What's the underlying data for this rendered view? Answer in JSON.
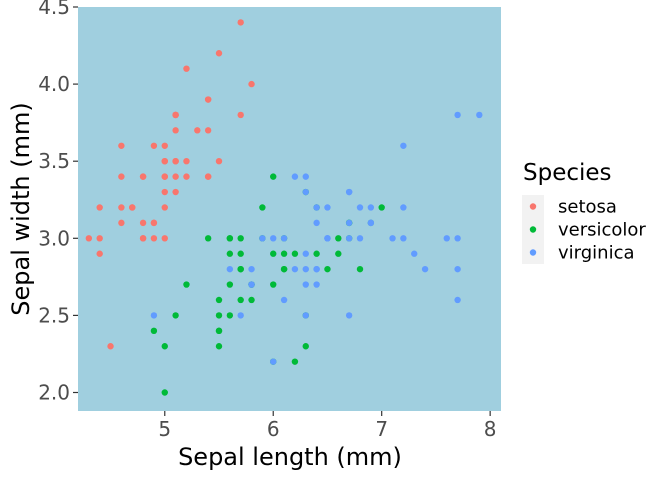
{
  "chart_data": {
    "type": "scatter",
    "xlabel": "Sepal length (mm)",
    "ylabel": "Sepal width (mm)",
    "xlim": [
      4.2,
      8.1
    ],
    "ylim": [
      1.88,
      4.5
    ],
    "xticks": [
      5,
      6,
      7,
      8
    ],
    "yticks": [
      2.0,
      2.5,
      3.0,
      3.5,
      4.0,
      4.5
    ],
    "xtick_labels": [
      "5",
      "6",
      "7",
      "8"
    ],
    "ytick_labels": [
      "2.0",
      "2.5",
      "3.0",
      "3.5",
      "4.0",
      "4.5"
    ],
    "grid": false,
    "panel_background": "#a0cfdf",
    "legend_position": "right",
    "legend": {
      "title": "Species",
      "entries": [
        "setosa",
        "versicolor",
        "virginica"
      ]
    },
    "series": [
      {
        "name": "setosa",
        "color": "#f8766d",
        "points": [
          [
            5.1,
            3.5
          ],
          [
            4.9,
            3.0
          ],
          [
            4.7,
            3.2
          ],
          [
            4.6,
            3.1
          ],
          [
            5.0,
            3.6
          ],
          [
            5.4,
            3.9
          ],
          [
            4.6,
            3.4
          ],
          [
            5.0,
            3.4
          ],
          [
            4.4,
            2.9
          ],
          [
            4.9,
            3.1
          ],
          [
            5.4,
            3.7
          ],
          [
            4.8,
            3.4
          ],
          [
            4.8,
            3.0
          ],
          [
            4.3,
            3.0
          ],
          [
            5.8,
            4.0
          ],
          [
            5.7,
            4.4
          ],
          [
            5.4,
            3.9
          ],
          [
            5.1,
            3.5
          ],
          [
            5.7,
            3.8
          ],
          [
            5.1,
            3.8
          ],
          [
            5.4,
            3.4
          ],
          [
            5.1,
            3.7
          ],
          [
            4.6,
            3.6
          ],
          [
            5.1,
            3.3
          ],
          [
            4.8,
            3.4
          ],
          [
            5.0,
            3.0
          ],
          [
            5.0,
            3.4
          ],
          [
            5.2,
            3.5
          ],
          [
            5.2,
            3.4
          ],
          [
            4.7,
            3.2
          ],
          [
            4.8,
            3.1
          ],
          [
            5.4,
            3.4
          ],
          [
            5.2,
            4.1
          ],
          [
            5.5,
            4.2
          ],
          [
            4.9,
            3.1
          ],
          [
            5.0,
            3.2
          ],
          [
            5.5,
            3.5
          ],
          [
            4.9,
            3.6
          ],
          [
            4.4,
            3.0
          ],
          [
            5.1,
            3.4
          ],
          [
            5.0,
            3.5
          ],
          [
            4.5,
            2.3
          ],
          [
            4.4,
            3.2
          ],
          [
            5.0,
            3.5
          ],
          [
            5.1,
            3.8
          ],
          [
            4.8,
            3.0
          ],
          [
            5.1,
            3.8
          ],
          [
            4.6,
            3.2
          ],
          [
            5.3,
            3.7
          ],
          [
            5.0,
            3.3
          ]
        ]
      },
      {
        "name": "versicolor",
        "color": "#00ba38",
        "points": [
          [
            7.0,
            3.2
          ],
          [
            6.4,
            3.2
          ],
          [
            6.9,
            3.1
          ],
          [
            5.5,
            2.3
          ],
          [
            6.5,
            2.8
          ],
          [
            5.7,
            2.8
          ],
          [
            6.3,
            3.3
          ],
          [
            4.9,
            2.4
          ],
          [
            6.6,
            2.9
          ],
          [
            5.2,
            2.7
          ],
          [
            5.0,
            2.0
          ],
          [
            5.9,
            3.0
          ],
          [
            6.0,
            2.2
          ],
          [
            6.1,
            2.9
          ],
          [
            5.6,
            2.9
          ],
          [
            6.7,
            3.1
          ],
          [
            5.6,
            3.0
          ],
          [
            5.8,
            2.7
          ],
          [
            6.2,
            2.2
          ],
          [
            5.6,
            2.5
          ],
          [
            5.9,
            3.2
          ],
          [
            6.1,
            2.8
          ],
          [
            6.3,
            2.5
          ],
          [
            6.1,
            2.8
          ],
          [
            6.4,
            2.9
          ],
          [
            6.6,
            3.0
          ],
          [
            6.8,
            2.8
          ],
          [
            6.7,
            3.0
          ],
          [
            6.0,
            2.9
          ],
          [
            5.7,
            2.6
          ],
          [
            5.5,
            2.4
          ],
          [
            5.5,
            2.4
          ],
          [
            5.8,
            2.7
          ],
          [
            6.0,
            2.7
          ],
          [
            5.4,
            3.0
          ],
          [
            6.0,
            3.4
          ],
          [
            6.7,
            3.1
          ],
          [
            6.3,
            2.3
          ],
          [
            5.6,
            3.0
          ],
          [
            5.5,
            2.5
          ],
          [
            5.5,
            2.6
          ],
          [
            6.1,
            3.0
          ],
          [
            5.8,
            2.6
          ],
          [
            5.0,
            2.3
          ],
          [
            5.6,
            2.7
          ],
          [
            5.7,
            3.0
          ],
          [
            5.7,
            2.9
          ],
          [
            6.2,
            2.9
          ],
          [
            5.1,
            2.5
          ],
          [
            5.7,
            2.8
          ]
        ]
      },
      {
        "name": "virginica",
        "color": "#619cff",
        "points": [
          [
            6.3,
            3.3
          ],
          [
            5.8,
            2.7
          ],
          [
            7.1,
            3.0
          ],
          [
            6.3,
            2.9
          ],
          [
            6.5,
            3.0
          ],
          [
            7.6,
            3.0
          ],
          [
            4.9,
            2.5
          ],
          [
            7.3,
            2.9
          ],
          [
            6.7,
            2.5
          ],
          [
            7.2,
            3.6
          ],
          [
            6.5,
            3.2
          ],
          [
            6.4,
            2.7
          ],
          [
            6.8,
            3.0
          ],
          [
            5.7,
            2.5
          ],
          [
            5.8,
            2.8
          ],
          [
            6.4,
            3.2
          ],
          [
            6.5,
            3.0
          ],
          [
            7.7,
            3.8
          ],
          [
            7.7,
            2.6
          ],
          [
            6.0,
            2.2
          ],
          [
            6.9,
            3.2
          ],
          [
            5.6,
            2.8
          ],
          [
            7.7,
            2.8
          ],
          [
            6.3,
            2.7
          ],
          [
            6.7,
            3.3
          ],
          [
            7.2,
            3.2
          ],
          [
            6.2,
            2.8
          ],
          [
            6.1,
            3.0
          ],
          [
            6.4,
            2.8
          ],
          [
            7.2,
            3.0
          ],
          [
            7.4,
            2.8
          ],
          [
            7.9,
            3.8
          ],
          [
            6.4,
            2.8
          ],
          [
            6.3,
            2.8
          ],
          [
            6.1,
            2.6
          ],
          [
            7.7,
            3.0
          ],
          [
            6.3,
            3.4
          ],
          [
            6.4,
            3.1
          ],
          [
            6.0,
            3.0
          ],
          [
            6.9,
            3.1
          ],
          [
            6.7,
            3.1
          ],
          [
            6.9,
            3.1
          ],
          [
            5.8,
            2.7
          ],
          [
            6.8,
            3.2
          ],
          [
            6.7,
            3.3
          ],
          [
            6.7,
            3.0
          ],
          [
            6.3,
            2.5
          ],
          [
            6.5,
            3.0
          ],
          [
            6.2,
            3.4
          ],
          [
            5.9,
            3.0
          ]
        ]
      }
    ]
  }
}
